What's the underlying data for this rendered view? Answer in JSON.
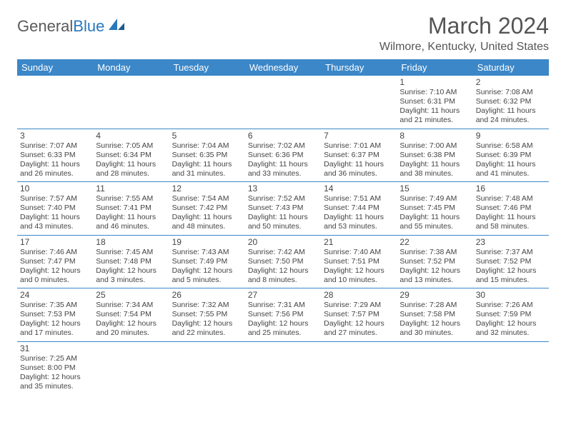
{
  "logo": {
    "part1": "General",
    "part2": "Blue"
  },
  "title": "March 2024",
  "location": "Wilmore, Kentucky, United States",
  "colors": {
    "headerBg": "#3b87c8",
    "headerText": "#ffffff",
    "border": "#3b87c8",
    "text": "#444444",
    "titleColor": "#555555"
  },
  "weekdays": [
    "Sunday",
    "Monday",
    "Tuesday",
    "Wednesday",
    "Thursday",
    "Friday",
    "Saturday"
  ],
  "weeks": [
    [
      null,
      null,
      null,
      null,
      null,
      {
        "d": "1",
        "sr": "Sunrise: 7:10 AM",
        "ss": "Sunset: 6:31 PM",
        "dl": "Daylight: 11 hours and 21 minutes."
      },
      {
        "d": "2",
        "sr": "Sunrise: 7:08 AM",
        "ss": "Sunset: 6:32 PM",
        "dl": "Daylight: 11 hours and 24 minutes."
      }
    ],
    [
      {
        "d": "3",
        "sr": "Sunrise: 7:07 AM",
        "ss": "Sunset: 6:33 PM",
        "dl": "Daylight: 11 hours and 26 minutes."
      },
      {
        "d": "4",
        "sr": "Sunrise: 7:05 AM",
        "ss": "Sunset: 6:34 PM",
        "dl": "Daylight: 11 hours and 28 minutes."
      },
      {
        "d": "5",
        "sr": "Sunrise: 7:04 AM",
        "ss": "Sunset: 6:35 PM",
        "dl": "Daylight: 11 hours and 31 minutes."
      },
      {
        "d": "6",
        "sr": "Sunrise: 7:02 AM",
        "ss": "Sunset: 6:36 PM",
        "dl": "Daylight: 11 hours and 33 minutes."
      },
      {
        "d": "7",
        "sr": "Sunrise: 7:01 AM",
        "ss": "Sunset: 6:37 PM",
        "dl": "Daylight: 11 hours and 36 minutes."
      },
      {
        "d": "8",
        "sr": "Sunrise: 7:00 AM",
        "ss": "Sunset: 6:38 PM",
        "dl": "Daylight: 11 hours and 38 minutes."
      },
      {
        "d": "9",
        "sr": "Sunrise: 6:58 AM",
        "ss": "Sunset: 6:39 PM",
        "dl": "Daylight: 11 hours and 41 minutes."
      }
    ],
    [
      {
        "d": "10",
        "sr": "Sunrise: 7:57 AM",
        "ss": "Sunset: 7:40 PM",
        "dl": "Daylight: 11 hours and 43 minutes."
      },
      {
        "d": "11",
        "sr": "Sunrise: 7:55 AM",
        "ss": "Sunset: 7:41 PM",
        "dl": "Daylight: 11 hours and 46 minutes."
      },
      {
        "d": "12",
        "sr": "Sunrise: 7:54 AM",
        "ss": "Sunset: 7:42 PM",
        "dl": "Daylight: 11 hours and 48 minutes."
      },
      {
        "d": "13",
        "sr": "Sunrise: 7:52 AM",
        "ss": "Sunset: 7:43 PM",
        "dl": "Daylight: 11 hours and 50 minutes."
      },
      {
        "d": "14",
        "sr": "Sunrise: 7:51 AM",
        "ss": "Sunset: 7:44 PM",
        "dl": "Daylight: 11 hours and 53 minutes."
      },
      {
        "d": "15",
        "sr": "Sunrise: 7:49 AM",
        "ss": "Sunset: 7:45 PM",
        "dl": "Daylight: 11 hours and 55 minutes."
      },
      {
        "d": "16",
        "sr": "Sunrise: 7:48 AM",
        "ss": "Sunset: 7:46 PM",
        "dl": "Daylight: 11 hours and 58 minutes."
      }
    ],
    [
      {
        "d": "17",
        "sr": "Sunrise: 7:46 AM",
        "ss": "Sunset: 7:47 PM",
        "dl": "Daylight: 12 hours and 0 minutes."
      },
      {
        "d": "18",
        "sr": "Sunrise: 7:45 AM",
        "ss": "Sunset: 7:48 PM",
        "dl": "Daylight: 12 hours and 3 minutes."
      },
      {
        "d": "19",
        "sr": "Sunrise: 7:43 AM",
        "ss": "Sunset: 7:49 PM",
        "dl": "Daylight: 12 hours and 5 minutes."
      },
      {
        "d": "20",
        "sr": "Sunrise: 7:42 AM",
        "ss": "Sunset: 7:50 PM",
        "dl": "Daylight: 12 hours and 8 minutes."
      },
      {
        "d": "21",
        "sr": "Sunrise: 7:40 AM",
        "ss": "Sunset: 7:51 PM",
        "dl": "Daylight: 12 hours and 10 minutes."
      },
      {
        "d": "22",
        "sr": "Sunrise: 7:38 AM",
        "ss": "Sunset: 7:52 PM",
        "dl": "Daylight: 12 hours and 13 minutes."
      },
      {
        "d": "23",
        "sr": "Sunrise: 7:37 AM",
        "ss": "Sunset: 7:52 PM",
        "dl": "Daylight: 12 hours and 15 minutes."
      }
    ],
    [
      {
        "d": "24",
        "sr": "Sunrise: 7:35 AM",
        "ss": "Sunset: 7:53 PM",
        "dl": "Daylight: 12 hours and 17 minutes."
      },
      {
        "d": "25",
        "sr": "Sunrise: 7:34 AM",
        "ss": "Sunset: 7:54 PM",
        "dl": "Daylight: 12 hours and 20 minutes."
      },
      {
        "d": "26",
        "sr": "Sunrise: 7:32 AM",
        "ss": "Sunset: 7:55 PM",
        "dl": "Daylight: 12 hours and 22 minutes."
      },
      {
        "d": "27",
        "sr": "Sunrise: 7:31 AM",
        "ss": "Sunset: 7:56 PM",
        "dl": "Daylight: 12 hours and 25 minutes."
      },
      {
        "d": "28",
        "sr": "Sunrise: 7:29 AM",
        "ss": "Sunset: 7:57 PM",
        "dl": "Daylight: 12 hours and 27 minutes."
      },
      {
        "d": "29",
        "sr": "Sunrise: 7:28 AM",
        "ss": "Sunset: 7:58 PM",
        "dl": "Daylight: 12 hours and 30 minutes."
      },
      {
        "d": "30",
        "sr": "Sunrise: 7:26 AM",
        "ss": "Sunset: 7:59 PM",
        "dl": "Daylight: 12 hours and 32 minutes."
      }
    ],
    [
      {
        "d": "31",
        "sr": "Sunrise: 7:25 AM",
        "ss": "Sunset: 8:00 PM",
        "dl": "Daylight: 12 hours and 35 minutes."
      },
      null,
      null,
      null,
      null,
      null,
      null
    ]
  ]
}
